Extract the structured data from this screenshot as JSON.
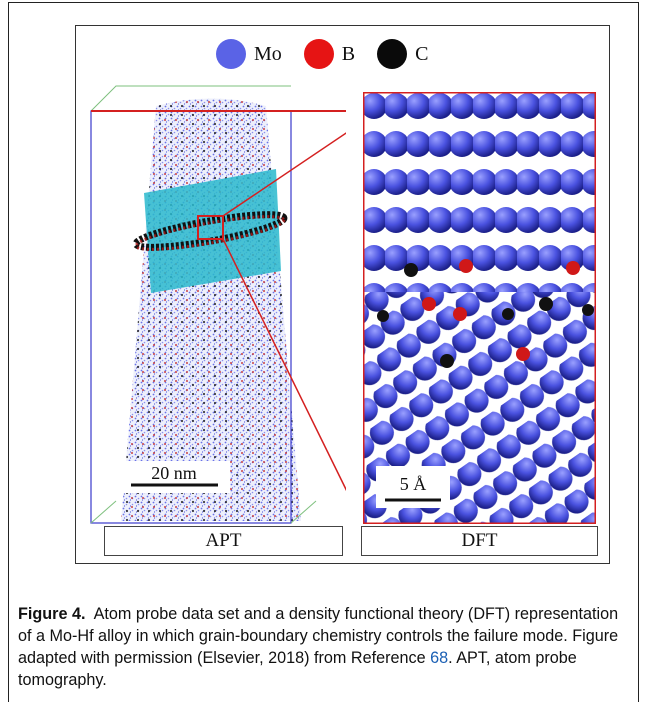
{
  "figure": {
    "legend": [
      {
        "label": "Mo",
        "color": "#5a63e6"
      },
      {
        "label": "B",
        "color": "#e61414"
      },
      {
        "label": "C",
        "color": "#0a0a0a"
      }
    ],
    "left_panel": {
      "label": "APT",
      "scale_bar": "20 nm"
    },
    "right_panel": {
      "label": "DFT",
      "scale_bar": "5 Å"
    },
    "colors": {
      "zoom_box": "#d42020",
      "bounding_box": "#3a3acc",
      "cylinder": "#29b8cc",
      "atom_blue": "#4a52e0"
    }
  },
  "caption": {
    "label": "Figure 4.",
    "text_before_ref": "Atom probe data set and a density functional theory (DFT) representation of a Mo-Hf alloy in which grain-boundary chemistry controls the failure mode. Figure adapted with permission (Elsevier, 2018) from Reference ",
    "ref": "68",
    "text_after_ref": ". APT, atom probe tomography."
  }
}
